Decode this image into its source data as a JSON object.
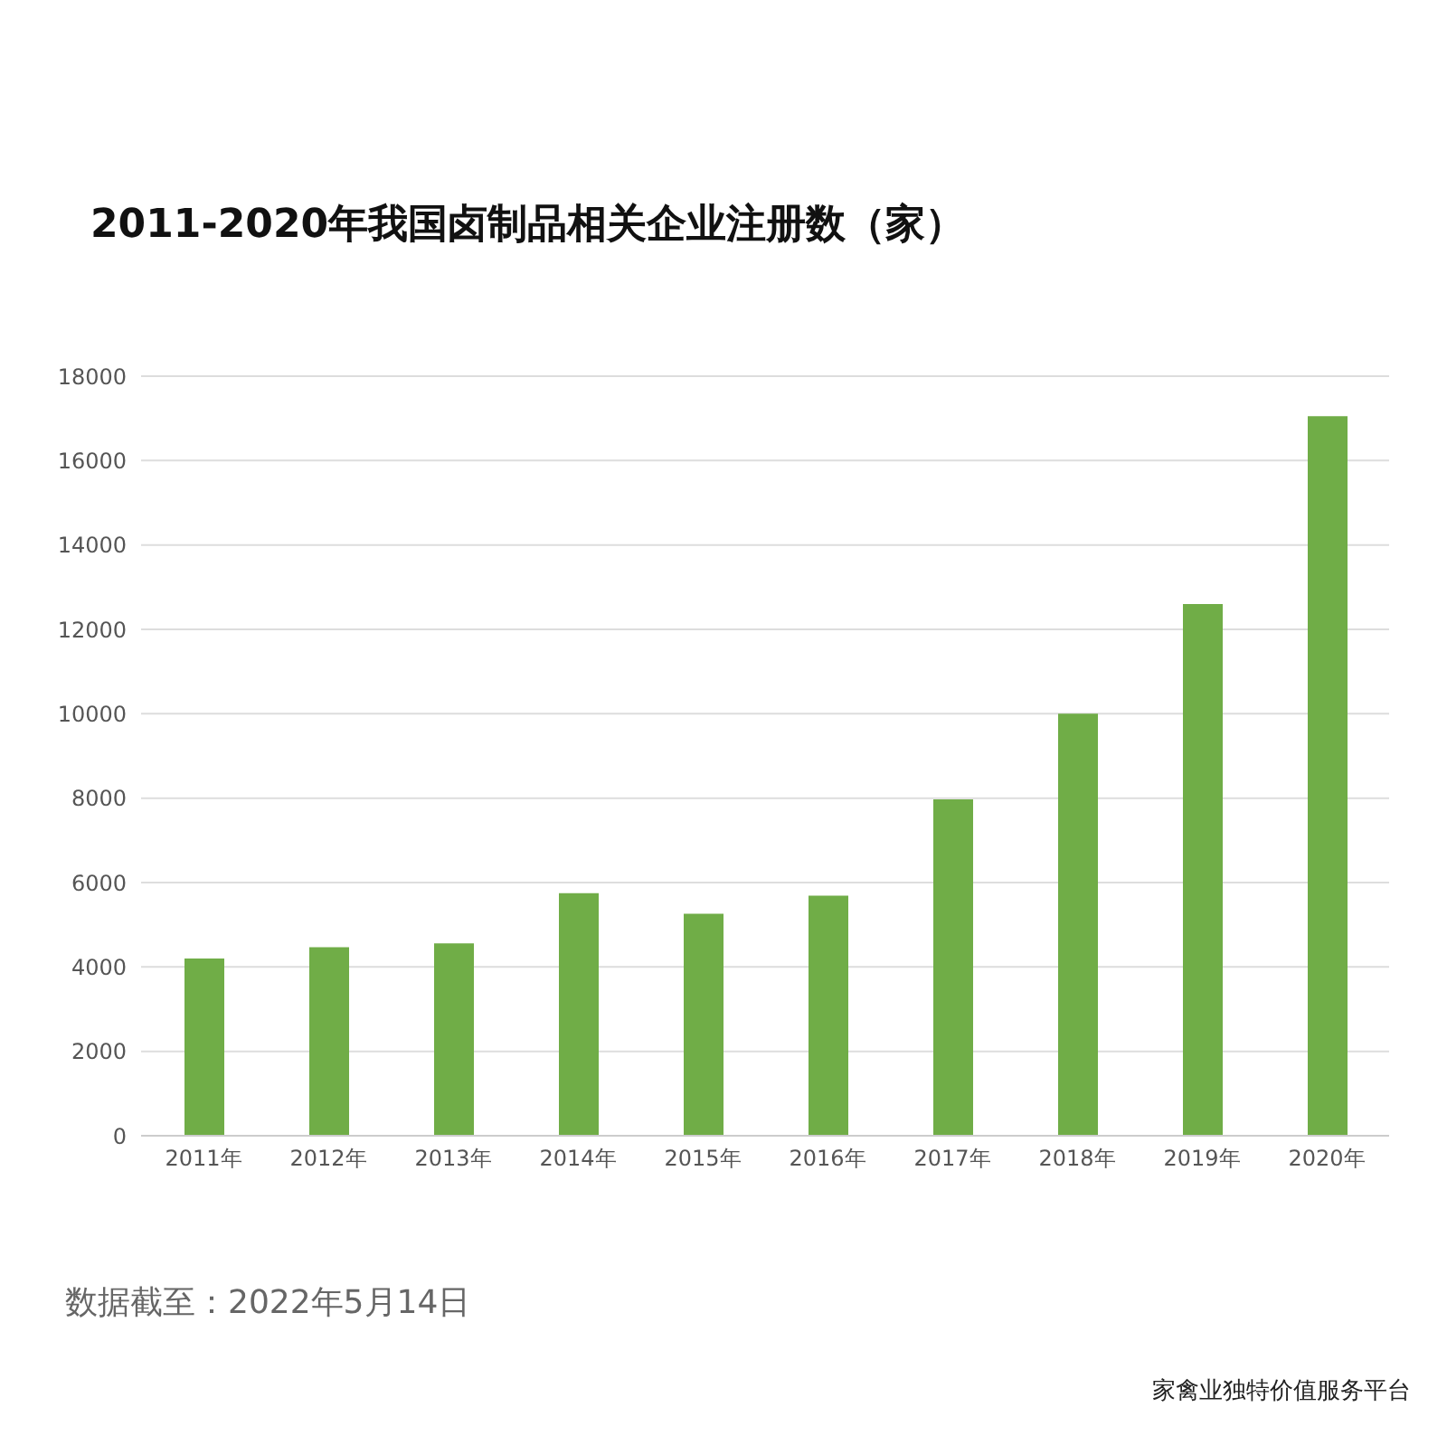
{
  "chart_data": {
    "type": "bar",
    "title": "2011-2020年我国卤制品相关企业注册数（家）",
    "categories": [
      "2011年",
      "2012年",
      "2013年",
      "2014年",
      "2015年",
      "2016年",
      "2017年",
      "2018年",
      "2019年",
      "2020年"
    ],
    "values": [
      4200,
      4470,
      4560,
      5750,
      5260,
      5690,
      7970,
      10000,
      12600,
      17050
    ],
    "color": "#70ad47",
    "ylim": [
      0,
      18000
    ],
    "yticks": [
      0,
      2000,
      4000,
      6000,
      8000,
      10000,
      12000,
      14000,
      16000,
      18000
    ],
    "grid": "y",
    "annotations": [
      "数据截至：2022年5月14日",
      "家禽业独特价值服务平台"
    ]
  }
}
